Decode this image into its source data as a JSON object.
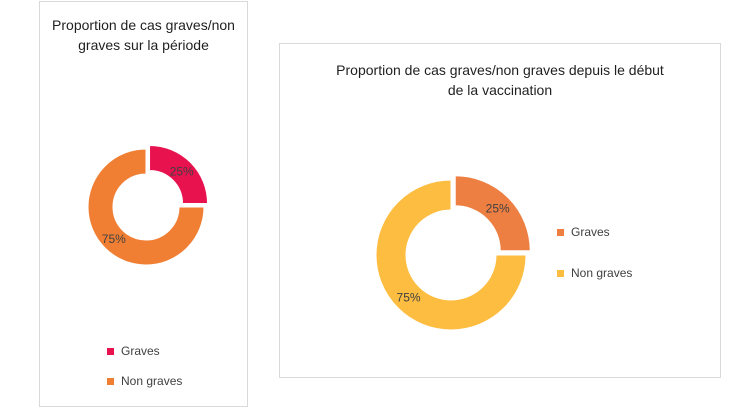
{
  "chart_data": [
    {
      "type": "pie",
      "donut": true,
      "title": "Proportion de cas graves/non graves sur la période",
      "labels": [
        "Graves",
        "Non graves"
      ],
      "values": [
        25,
        75
      ],
      "value_labels": [
        "25%",
        "75%"
      ],
      "colors": [
        "#e8124f",
        "#f07f34"
      ],
      "exploded": "Graves",
      "legend": {
        "position": "bottom",
        "entries": [
          "Graves",
          "Non graves"
        ]
      }
    },
    {
      "type": "pie",
      "donut": true,
      "title": "Proportion de cas graves/non graves depuis le début de la vaccination",
      "labels": [
        "Graves",
        "Non graves"
      ],
      "values": [
        25,
        75
      ],
      "value_labels": [
        "25%",
        "75%"
      ],
      "colors": [
        "#ee7f42",
        "#fdbd40"
      ],
      "exploded": "Graves",
      "legend": {
        "position": "right",
        "entries": [
          "Graves",
          "Non graves"
        ]
      }
    }
  ]
}
